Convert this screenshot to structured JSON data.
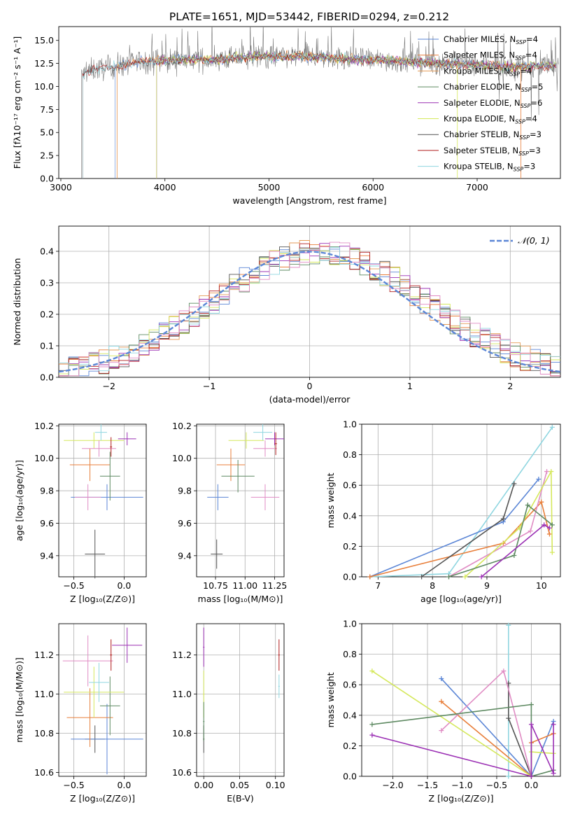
{
  "figure": {
    "title": "PLATE=1651, MJD=53442, FIBERID=0294, z=0.212"
  },
  "palette": {
    "Chabrier MILES": "#5b86d6",
    "Salpeter MILES": "#e87f3b",
    "Kroupa MILES": "#e59b57",
    "Chabrier ELODIE": "#5e8a62",
    "Salpeter ELODIE": "#9b30b4",
    "Kroupa ELODIE": "#d5e85c",
    "Chabrier STELIB": "#555555",
    "Salpeter STELIB": "#b01c1c",
    "Kroupa STELIB": "#8fd6e0",
    "pink": "#e08cc4",
    "normal_curve": "#5b86d6"
  },
  "chart_data": [
    {
      "id": "spectrum",
      "type": "line",
      "title": "PLATE=1651, MJD=53442, FIBERID=0294, z=0.212",
      "xlabel": "wavelength [Angstrom, rest frame]",
      "ylabel": "Flux [fλ10⁻¹⁷ erg cm⁻² s⁻¹ A⁻¹]",
      "xlim": [
        2980,
        7800
      ],
      "ylim": [
        0,
        16.5
      ],
      "xticks": [
        3000,
        4000,
        5000,
        6000,
        7000
      ],
      "yticks": [
        0.0,
        2.5,
        5.0,
        7.5,
        10.0,
        12.5,
        15.0
      ],
      "grid": false,
      "legend_position": "top-right",
      "observed_range": [
        3200,
        7780
      ],
      "continuum": [
        [
          3200,
          11.2
        ],
        [
          3300,
          11.8
        ],
        [
          3500,
          12.1
        ],
        [
          3700,
          12.6
        ],
        [
          3900,
          12.8
        ],
        [
          4100,
          12.9
        ],
        [
          4300,
          12.9
        ],
        [
          4500,
          12.9
        ],
        [
          4700,
          13.1
        ],
        [
          4900,
          13.3
        ],
        [
          5100,
          13.2
        ],
        [
          5300,
          13.3
        ],
        [
          5500,
          13.2
        ],
        [
          5700,
          13.0
        ],
        [
          5900,
          12.9
        ],
        [
          6100,
          12.9
        ],
        [
          6300,
          12.7
        ],
        [
          6500,
          12.6
        ],
        [
          6700,
          12.5
        ],
        [
          6900,
          12.4
        ],
        [
          7100,
          12.3
        ],
        [
          7300,
          12.1
        ],
        [
          7500,
          12.2
        ],
        [
          7780,
          12.3
        ]
      ],
      "series": [
        {
          "name": "Chabrier MILES",
          "nssp": "4",
          "start": 3520
        },
        {
          "name": "Salpeter MILES",
          "nssp": "4",
          "start": 3540
        },
        {
          "name": "Kroupa MILES",
          "nssp": "4",
          "start": 3540
        },
        {
          "name": "Chabrier ELODIE",
          "nssp": "5",
          "start": 3920
        },
        {
          "name": "Salpeter ELODIE",
          "nssp": "6",
          "start": 3920
        },
        {
          "name": "Kroupa ELODIE",
          "nssp": "4",
          "start": 3920
        },
        {
          "name": "Chabrier STELIB",
          "nssp": "3",
          "start": 3210
        },
        {
          "name": "Salpeter STELIB",
          "nssp": "3",
          "start": 3210
        },
        {
          "name": "Kroupa STELIB",
          "nssp": "3",
          "start": 3210
        }
      ]
    },
    {
      "id": "residuals",
      "type": "line",
      "xlabel": "(data-model)/error",
      "ylabel": "Normed distribution",
      "xlim": [
        -2.5,
        2.5
      ],
      "ylim": [
        0,
        0.48
      ],
      "xticks": [
        -2,
        -1,
        0,
        1,
        2
      ],
      "yticks": [
        0.0,
        0.1,
        0.2,
        0.3,
        0.4
      ],
      "grid": true,
      "legend": "𝒩(0, 1)",
      "legend_position": "top-right",
      "bin_width": 0.1
    },
    {
      "id": "age_vs_Z",
      "type": "scatter",
      "xlabel": "Z [log₁₀(Z/Z⊙)]",
      "ylabel": "age  [log₁₀(age/yr)]",
      "xlim": [
        -0.65,
        0.22
      ],
      "ylim": [
        9.27,
        10.21
      ],
      "xticks": [
        -0.5,
        0.0
      ],
      "xtick_labels": [
        "−0.5",
        "0.0"
      ],
      "yticks": [
        9.4,
        9.6,
        9.8,
        10.0,
        10.2
      ],
      "ytick_labels": [
        "9.4",
        "9.6",
        "9.8",
        "10.0",
        "10.2"
      ],
      "grid": true,
      "points": [
        {
          "x": -0.29,
          "y": 9.41,
          "ex": 0.1,
          "ey": 0.15,
          "color": "Chabrier STELIB"
        },
        {
          "x": -0.17,
          "y": 9.76,
          "ex": 0.36,
          "ey": 0.08,
          "color": "Chabrier MILES"
        },
        {
          "x": -0.36,
          "y": 9.76,
          "ex": 0.13,
          "ey": 0.08,
          "color": "pink"
        },
        {
          "x": -0.34,
          "y": 9.96,
          "ex": 0.2,
          "ey": 0.1,
          "color": "Salpeter MILES"
        },
        {
          "x": -0.14,
          "y": 9.89,
          "ex": 0.1,
          "ey": 0.15,
          "color": "Chabrier ELODIE"
        },
        {
          "x": -0.3,
          "y": 10.11,
          "ex": 0.3,
          "ey": 0.05,
          "color": "Kroupa ELODIE"
        },
        {
          "x": -0.25,
          "y": 10.06,
          "ex": 0.17,
          "ey": 0.05,
          "color": "pink"
        },
        {
          "x": -0.23,
          "y": 10.16,
          "ex": 0.06,
          "ey": 0.05,
          "color": "Kroupa STELIB"
        },
        {
          "x": 0.03,
          "y": 10.12,
          "ex": 0.09,
          "ey": 0.04,
          "color": "Salpeter ELODIE"
        },
        {
          "x": -0.13,
          "y": 10.07,
          "ex": 0.01,
          "ey": 0.06,
          "color": "Salpeter STELIB"
        }
      ]
    },
    {
      "id": "age_vs_mass",
      "type": "scatter",
      "xlabel": "mass [log₁₀(M/M⊙)]",
      "xlim": [
        10.59,
        11.33
      ],
      "ylim": [
        9.27,
        10.21
      ],
      "xticks": [
        10.75,
        11.0,
        11.25
      ],
      "xtick_labels": [
        "10.75",
        "11.00",
        "11.25"
      ],
      "yticks": [
        9.4,
        9.6,
        9.8,
        10.0,
        10.2
      ],
      "ytick_labels": [
        "9.4",
        "9.6",
        "9.8",
        "10.0",
        "10.2"
      ],
      "grid": true,
      "points": [
        {
          "x": 10.76,
          "y": 9.41,
          "ex": 0.05,
          "ey": 0.09,
          "color": "Chabrier STELIB"
        },
        {
          "x": 10.77,
          "y": 9.76,
          "ex": 0.09,
          "ey": 0.08,
          "color": "Chabrier MILES"
        },
        {
          "x": 11.17,
          "y": 9.76,
          "ex": 0.12,
          "ey": 0.08,
          "color": "pink"
        },
        {
          "x": 10.88,
          "y": 9.96,
          "ex": 0.12,
          "ey": 0.1,
          "color": "Salpeter MILES"
        },
        {
          "x": 10.94,
          "y": 9.89,
          "ex": 0.14,
          "ey": 0.1,
          "color": "Chabrier ELODIE"
        },
        {
          "x": 11.01,
          "y": 10.11,
          "ex": 0.15,
          "ey": 0.05,
          "color": "Kroupa ELODIE"
        },
        {
          "x": 11.17,
          "y": 10.06,
          "ex": 0.1,
          "ey": 0.05,
          "color": "pink"
        },
        {
          "x": 11.15,
          "y": 10.16,
          "ex": 0.08,
          "ey": 0.05,
          "color": "Kroupa STELIB"
        },
        {
          "x": 11.25,
          "y": 10.12,
          "ex": 0.08,
          "ey": 0.04,
          "color": "Salpeter ELODIE"
        },
        {
          "x": 11.26,
          "y": 10.09,
          "ex": 0.01,
          "ey": 0.07,
          "color": "Salpeter STELIB"
        }
      ]
    },
    {
      "id": "massweight_vs_age",
      "type": "line",
      "xlabel": "age  [log₁₀(age/yr)]",
      "ylabel": "mass weight",
      "xlim": [
        6.7,
        10.35
      ],
      "ylim": [
        0,
        1
      ],
      "xticks": [
        7,
        8,
        9,
        10
      ],
      "yticks": [
        0.0,
        0.2,
        0.4,
        0.6,
        0.8,
        1.0
      ],
      "grid": true,
      "series": [
        {
          "color": "Kroupa STELIB",
          "points": [
            [
              6.85,
              0.0
            ],
            [
              8.3,
              0.02
            ],
            [
              10.2,
              0.98
            ]
          ]
        },
        {
          "color": "Chabrier MILES",
          "points": [
            [
              6.85,
              0.0
            ],
            [
              9.3,
              0.36
            ],
            [
              9.95,
              0.64
            ]
          ]
        },
        {
          "color": "Salpeter MILES",
          "points": [
            [
              6.85,
              0.0
            ],
            [
              9.3,
              0.22
            ],
            [
              10.0,
              0.49
            ],
            [
              10.15,
              0.28
            ]
          ]
        },
        {
          "color": "Chabrier STELIB",
          "points": [
            [
              7.8,
              0.0
            ],
            [
              9.3,
              0.38
            ],
            [
              9.5,
              0.61
            ]
          ]
        },
        {
          "color": "pink",
          "points": [
            [
              8.3,
              0.0
            ],
            [
              9.8,
              0.3
            ],
            [
              10.1,
              0.69
            ]
          ]
        },
        {
          "color": "Kroupa ELODIE",
          "points": [
            [
              8.6,
              0.0
            ],
            [
              9.6,
              0.32
            ],
            [
              10.18,
              0.69
            ],
            [
              10.2,
              0.16
            ]
          ]
        },
        {
          "color": "Chabrier ELODIE",
          "points": [
            [
              8.3,
              0.0
            ],
            [
              9.5,
              0.14
            ],
            [
              9.75,
              0.47
            ],
            [
              10.2,
              0.34
            ]
          ]
        },
        {
          "color": "Salpeter ELODIE",
          "points": [
            [
              8.9,
              0.0
            ],
            [
              10.05,
              0.34
            ],
            [
              10.15,
              0.32
            ]
          ]
        }
      ]
    },
    {
      "id": "mass_vs_Z",
      "type": "scatter",
      "xlabel": "Z [log₁₀(Z/Z⊙)]",
      "ylabel": "mass [log₁₀(M/M⊙)]",
      "xlim": [
        -0.65,
        0.22
      ],
      "ylim": [
        10.58,
        11.36
      ],
      "xticks": [
        -0.5,
        0.0
      ],
      "xtick_labels": [
        "−0.5",
        "0.0"
      ],
      "yticks": [
        10.6,
        10.8,
        11.0,
        11.2
      ],
      "ytick_labels": [
        "10.6",
        "10.8",
        "11.0",
        "11.2"
      ],
      "grid": true,
      "points": [
        {
          "x": -0.29,
          "y": 10.77,
          "ex": 0.1,
          "ey": 0.07,
          "color": "Chabrier STELIB"
        },
        {
          "x": -0.17,
          "y": 10.77,
          "ex": 0.36,
          "ey": 0.18,
          "color": "Chabrier MILES"
        },
        {
          "x": -0.36,
          "y": 11.17,
          "ex": 0.25,
          "ey": 0.13,
          "color": "pink"
        },
        {
          "x": -0.34,
          "y": 10.88,
          "ex": 0.23,
          "ey": 0.15,
          "color": "Salpeter MILES"
        },
        {
          "x": -0.14,
          "y": 10.94,
          "ex": 0.1,
          "ey": 0.15,
          "color": "Chabrier ELODIE"
        },
        {
          "x": -0.3,
          "y": 11.01,
          "ex": 0.3,
          "ey": 0.13,
          "color": "Kroupa ELODIE"
        },
        {
          "x": -0.25,
          "y": 11.06,
          "ex": 0.1,
          "ey": 0.1,
          "color": "Kroupa STELIB"
        },
        {
          "x": 0.03,
          "y": 11.25,
          "ex": 0.15,
          "ey": 0.09,
          "color": "Salpeter ELODIE"
        },
        {
          "x": -0.13,
          "y": 11.2,
          "ex": 0.01,
          "ey": 0.08,
          "color": "Salpeter STELIB"
        }
      ]
    },
    {
      "id": "mass_vs_EBV",
      "type": "scatter",
      "xlabel": "E(B-V)",
      "xlim": [
        -0.01,
        0.112
      ],
      "ylim": [
        10.58,
        11.36
      ],
      "xticks": [
        0.0,
        0.05,
        0.1
      ],
      "xtick_labels": [
        "0.00",
        "0.05",
        "0.10"
      ],
      "yticks": [
        10.6,
        10.8,
        11.0,
        11.2
      ],
      "ytick_labels": [
        "10.6",
        "10.8",
        "11.0",
        "11.2"
      ],
      "grid": true,
      "points": [
        {
          "x": 0.0,
          "y": 10.77,
          "ex": 0.001,
          "ey": 0.07,
          "color": "Chabrier STELIB"
        },
        {
          "x": 0.0,
          "y": 11.0,
          "ex": 0.001,
          "ey": 0.12,
          "color": "Kroupa ELODIE"
        },
        {
          "x": 0.0,
          "y": 10.86,
          "ex": 0.001,
          "ey": 0.1,
          "color": "Chabrier ELODIE"
        },
        {
          "x": 0.0,
          "y": 11.24,
          "ex": 0.001,
          "ey": 0.1,
          "color": "Salpeter ELODIE"
        },
        {
          "x": 0.105,
          "y": 11.04,
          "ex": 0.001,
          "ey": 0.06,
          "color": "Kroupa STELIB"
        },
        {
          "x": 0.105,
          "y": 11.2,
          "ex": 0.001,
          "ey": 0.08,
          "color": "Salpeter STELIB"
        }
      ]
    },
    {
      "id": "massweight_vs_Z",
      "type": "line",
      "xlabel": "Z [log₁₀(Z/Z⊙)]",
      "ylabel": "mass weight",
      "xlim": [
        -2.45,
        0.42
      ],
      "ylim": [
        0,
        1
      ],
      "xticks": [
        -2.0,
        -1.5,
        -1.0,
        -0.5,
        0.0
      ],
      "xtick_labels": [
        "−2.0",
        "−1.5",
        "−1.0",
        "−0.5",
        "0.0"
      ],
      "yticks": [
        0.0,
        0.2,
        0.4,
        0.6,
        0.8,
        1.0
      ],
      "grid": true,
      "series": [
        {
          "color": "Kroupa STELIB",
          "points": [
            [
              -0.33,
              0.0
            ],
            [
              -0.33,
              0.99
            ],
            [
              -0.33,
              0.0
            ]
          ]
        },
        {
          "color": "Chabrier MILES",
          "points": [
            [
              -1.3,
              0.64
            ],
            [
              0.0,
              0.0
            ],
            [
              0.32,
              0.36
            ]
          ]
        },
        {
          "color": "Salpeter MILES",
          "points": [
            [
              -1.3,
              0.49
            ],
            [
              0.0,
              0.0
            ],
            [
              0.0,
              0.22
            ],
            [
              0.32,
              0.28
            ]
          ]
        },
        {
          "color": "Chabrier STELIB",
          "points": [
            [
              -0.33,
              0.61
            ],
            [
              -0.33,
              0.38
            ],
            [
              0.0,
              0.0
            ]
          ]
        },
        {
          "color": "pink",
          "points": [
            [
              -1.3,
              0.3
            ],
            [
              -0.4,
              0.69
            ],
            [
              0.0,
              0.0
            ]
          ]
        },
        {
          "color": "Kroupa ELODIE",
          "points": [
            [
              -2.3,
              0.69
            ],
            [
              0.0,
              0.0
            ],
            [
              0.0,
              0.16
            ],
            [
              0.32,
              0.15
            ]
          ]
        },
        {
          "color": "Chabrier ELODIE",
          "points": [
            [
              -2.3,
              0.34
            ],
            [
              0.0,
              0.47
            ],
            [
              0.0,
              0.0
            ],
            [
              0.32,
              0.04
            ]
          ]
        },
        {
          "color": "Salpeter ELODIE",
          "points": [
            [
              -2.3,
              0.27
            ],
            [
              0.0,
              0.0
            ],
            [
              0.0,
              0.34
            ],
            [
              0.32,
              0.02
            ],
            [
              0.32,
              0.34
            ]
          ]
        }
      ]
    }
  ]
}
